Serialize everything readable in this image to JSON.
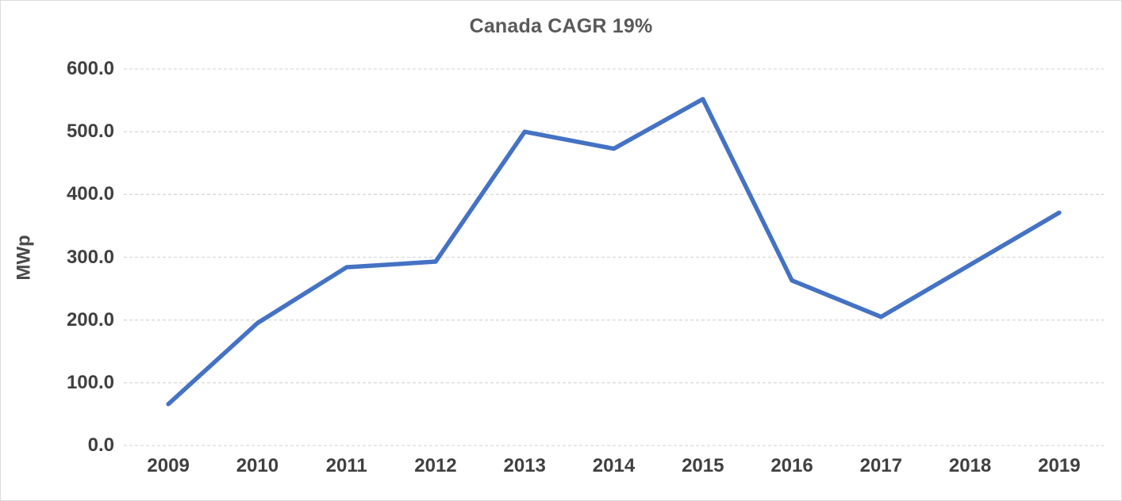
{
  "chart_data": {
    "type": "line",
    "title": "Canada CAGR 19%",
    "xlabel": "",
    "ylabel": "MWp",
    "categories": [
      "2009",
      "2010",
      "2011",
      "2012",
      "2013",
      "2014",
      "2015",
      "2016",
      "2017",
      "2018",
      "2019"
    ],
    "values": [
      66,
      195,
      284,
      293,
      500,
      473,
      552,
      263,
      205,
      288,
      371
    ],
    "ylim": [
      0,
      600
    ],
    "yticks": [
      {
        "value": 0,
        "label": "0.0"
      },
      {
        "value": 100,
        "label": "100.0"
      },
      {
        "value": 200,
        "label": "200.0"
      },
      {
        "value": 300,
        "label": "300.0"
      },
      {
        "value": 400,
        "label": "400.0"
      },
      {
        "value": 500,
        "label": "500.0"
      },
      {
        "value": 600,
        "label": "600.0"
      }
    ],
    "grid": "horizontal-dashed",
    "legend": "none",
    "line_color": "#4472C4",
    "grid_color": "#D9D9D9",
    "tick_text_color": "#404040",
    "title_color": "#595959",
    "background": "#FFFFFF"
  }
}
